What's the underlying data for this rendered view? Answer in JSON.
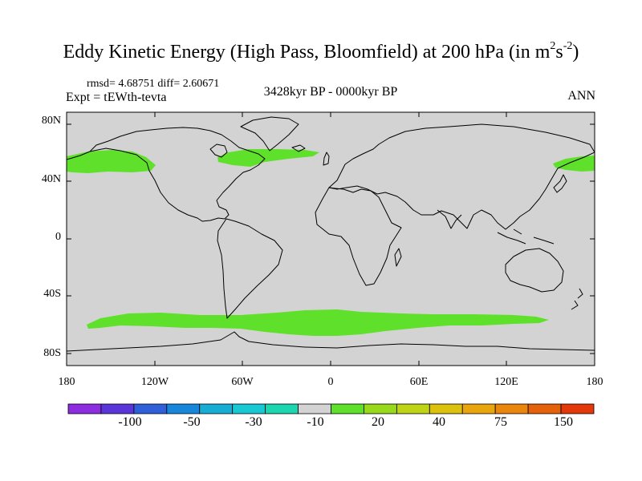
{
  "title": {
    "main": "Eddy Kinetic Energy (High Pass, Bloomfield) at 200 hPa (in m",
    "unit_sup1": "2",
    "unit_s": "s",
    "unit_sup2": "-2",
    "close": ")"
  },
  "stats": "rmsd= 4.68751 diff= 2.60671",
  "expt": "Expt = tEWth-tevta",
  "period": "3428kyr BP - 0000kyr BP",
  "season": "ANN",
  "lat_labels": [
    "80N",
    "40N",
    "0",
    "40S",
    "80S"
  ],
  "lon_labels": [
    "180",
    "120W",
    "60W",
    "0",
    "60E",
    "120E",
    "180"
  ],
  "colorbar": {
    "colors": [
      "#8c2de0",
      "#5a36d8",
      "#2f5fd9",
      "#1787db",
      "#17aed6",
      "#18c8d2",
      "#1cd6b0",
      "#d3d3d3",
      "#5fe02a",
      "#98d91b",
      "#bfd414",
      "#dcc20d",
      "#e8a50c",
      "#e9860b",
      "#e6620a",
      "#e2380a"
    ],
    "tick_labels": [
      "-100",
      "-50",
      "-30",
      "-10",
      "20",
      "40",
      "75",
      "150"
    ]
  },
  "colors": {
    "background": "#d3d3d3",
    "positive_anomaly": "#5fe02a",
    "coastline": "#000000"
  }
}
